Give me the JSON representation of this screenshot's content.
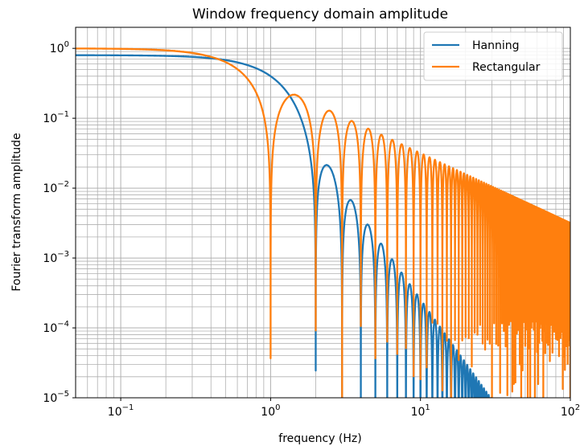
{
  "chart_data": {
    "type": "line",
    "title": "Window frequency domain amplitude",
    "xlabel": "frequency (Hz)",
    "ylabel": "Fourier transform amplitude",
    "xscale": "log",
    "yscale": "log",
    "xlim": [
      0.05,
      100
    ],
    "ylim": [
      1e-05,
      2
    ],
    "grid": "major and minor",
    "legend_position": "top-right",
    "x_ticks": [
      {
        "value": 0.1,
        "base": "10",
        "exp": "−1"
      },
      {
        "value": 1,
        "base": "10",
        "exp": "0"
      },
      {
        "value": 10,
        "base": "10",
        "exp": "1"
      },
      {
        "value": 100,
        "base": "10",
        "exp": "2"
      }
    ],
    "y_ticks": [
      {
        "value": 1e-05,
        "base": "10",
        "exp": "−5"
      },
      {
        "value": 0.0001,
        "base": "10",
        "exp": "−4"
      },
      {
        "value": 0.001,
        "base": "10",
        "exp": "−3"
      },
      {
        "value": 0.01,
        "base": "10",
        "exp": "−2"
      },
      {
        "value": 0.1,
        "base": "10",
        "exp": "−1"
      },
      {
        "value": 1,
        "base": "10",
        "exp": "0"
      }
    ],
    "series": [
      {
        "name": "Hanning",
        "color": "#1f77b4",
        "points": [
          [
            0.05,
            0.8
          ],
          [
            0.1,
            0.79
          ],
          [
            0.2,
            0.78
          ],
          [
            0.3,
            0.76
          ],
          [
            0.5,
            0.64
          ],
          [
            0.7,
            0.42
          ],
          [
            0.85,
            0.22
          ],
          [
            1.0,
            0.09
          ],
          [
            1.2,
            0.03
          ],
          [
            1.5,
            0.005
          ],
          [
            1.8,
            0.0008
          ],
          [
            2.0,
            1e-05
          ],
          [
            2.5,
            0.022
          ],
          [
            3.0,
            1e-05
          ],
          [
            3.5,
            0.0072
          ],
          [
            4.0,
            1e-05
          ],
          [
            4.5,
            0.0033
          ],
          [
            5.0,
            1e-05
          ],
          [
            5.5,
            0.0018
          ],
          [
            6.0,
            1e-05
          ],
          [
            6.5,
            0.0011
          ],
          [
            7.5,
            0.0007
          ],
          [
            8.5,
            0.00045
          ],
          [
            9.5,
            0.00031
          ],
          [
            11.5,
            0.00015
          ],
          [
            13.5,
            9e-05
          ],
          [
            15.5,
            6e-05
          ],
          [
            19.5,
            3e-05
          ],
          [
            23.5,
            1.8e-05
          ]
        ],
        "lobe_peaks_approx": [
          [
            2.5,
            0.022
          ],
          [
            3.5,
            0.0072
          ],
          [
            4.5,
            0.0033
          ],
          [
            5.5,
            0.0018
          ],
          [
            6.5,
            0.0011
          ],
          [
            7.5,
            0.0007
          ],
          [
            8.5,
            0.00045
          ],
          [
            9.5,
            0.00031
          ],
          [
            11.5,
            0.00015
          ],
          [
            15.5,
            6e-05
          ],
          [
            23.5,
            1.8e-05
          ]
        ]
      },
      {
        "name": "Rectangular",
        "color": "#ff7f0e",
        "points": [
          [
            0.05,
            1.0
          ],
          [
            0.1,
            0.98
          ],
          [
            0.2,
            0.93
          ],
          [
            0.3,
            0.86
          ],
          [
            0.5,
            0.64
          ],
          [
            0.7,
            0.37
          ],
          [
            0.9,
            0.11
          ],
          [
            1.0,
            1e-05
          ],
          [
            1.2,
            0.15
          ],
          [
            1.43,
            0.22
          ],
          [
            1.7,
            0.15
          ],
          [
            2.0,
            1e-05
          ],
          [
            2.46,
            0.13
          ],
          [
            3.0,
            1e-05
          ],
          [
            3.47,
            0.091
          ],
          [
            4.0,
            1e-05
          ],
          [
            4.5,
            0.07
          ],
          [
            5.5,
            0.058
          ],
          [
            6.5,
            0.049
          ],
          [
            7.5,
            0.042
          ],
          [
            8.5,
            0.037
          ],
          [
            9.5,
            0.033
          ],
          [
            12.5,
            0.025
          ],
          [
            19.5,
            0.016
          ],
          [
            29.5,
            0.011
          ],
          [
            49.5,
            0.0064
          ],
          [
            100,
            0.0032
          ]
        ],
        "lobe_peaks_approx": [
          [
            1.43,
            0.22
          ],
          [
            2.46,
            0.13
          ],
          [
            3.47,
            0.091
          ],
          [
            4.5,
            0.07
          ],
          [
            5.5,
            0.058
          ],
          [
            6.5,
            0.049
          ],
          [
            9.5,
            0.033
          ],
          [
            19.5,
            0.016
          ],
          [
            49.5,
            0.0064
          ],
          [
            100,
            0.0032
          ]
        ]
      }
    ]
  }
}
